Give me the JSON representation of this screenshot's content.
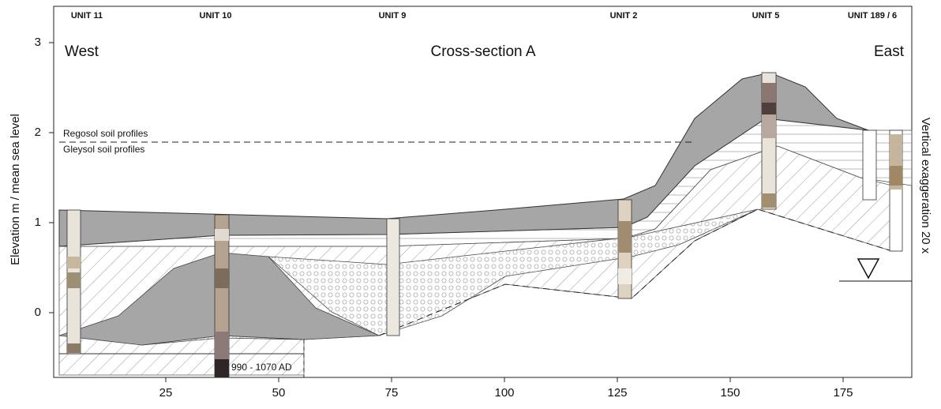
{
  "header": {
    "units": [
      "UNIT 11",
      "UNIT 10",
      "UNIT 9",
      "UNIT 2",
      "UNIT 5",
      "UNIT 189 / 6"
    ],
    "west": "West",
    "title": "Cross-section A",
    "east": "East"
  },
  "axes": {
    "y_label": "Elevation m / mean sea level",
    "y_ticks": [
      0,
      1,
      2,
      3
    ],
    "x_ticks": [
      25,
      50,
      75,
      100,
      125,
      150,
      175
    ]
  },
  "annotations": {
    "regosol": "Regosol soil profiles",
    "gleysol": "Gleysol soil profiles",
    "date": "990 - 1070 AD",
    "exaggeration": "Vertical exaggeration 20 x"
  }
}
